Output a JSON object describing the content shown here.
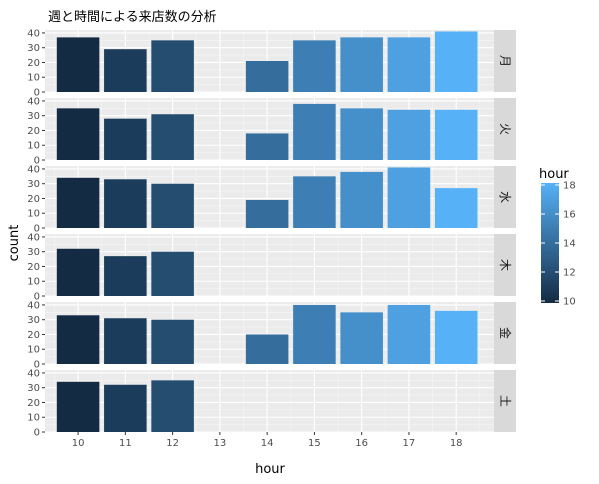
{
  "chart_data": {
    "type": "bar",
    "title": "週と時間による来店数の分析",
    "xlabel": "hour",
    "ylabel": "count",
    "x_ticks": [
      10,
      11,
      12,
      13,
      14,
      15,
      16,
      17,
      18
    ],
    "xlim": [
      9.3,
      18.8
    ],
    "y_ticks": [
      0,
      10,
      20,
      30,
      40
    ],
    "ylim": [
      0,
      42
    ],
    "grid": true,
    "legend": {
      "title": "hour",
      "position": "right",
      "ticks": [
        10,
        12,
        14,
        16,
        18
      ],
      "range": [
        10,
        18
      ],
      "colors": [
        "#132B43",
        "#56B1F7"
      ]
    },
    "panels": [
      {
        "label": "月",
        "bars": [
          {
            "hour": 10,
            "count": 37
          },
          {
            "hour": 11,
            "count": 29
          },
          {
            "hour": 12,
            "count": 35
          },
          {
            "hour": 14,
            "count": 21
          },
          {
            "hour": 15,
            "count": 35
          },
          {
            "hour": 16,
            "count": 37
          },
          {
            "hour": 17,
            "count": 37
          },
          {
            "hour": 18,
            "count": 41
          }
        ]
      },
      {
        "label": "火",
        "bars": [
          {
            "hour": 10,
            "count": 35
          },
          {
            "hour": 11,
            "count": 28
          },
          {
            "hour": 12,
            "count": 31
          },
          {
            "hour": 14,
            "count": 18
          },
          {
            "hour": 15,
            "count": 38
          },
          {
            "hour": 16,
            "count": 35
          },
          {
            "hour": 17,
            "count": 34
          },
          {
            "hour": 18,
            "count": 34
          }
        ]
      },
      {
        "label": "水",
        "bars": [
          {
            "hour": 10,
            "count": 34
          },
          {
            "hour": 11,
            "count": 33
          },
          {
            "hour": 12,
            "count": 30
          },
          {
            "hour": 14,
            "count": 19
          },
          {
            "hour": 15,
            "count": 35
          },
          {
            "hour": 16,
            "count": 38
          },
          {
            "hour": 17,
            "count": 41
          },
          {
            "hour": 18,
            "count": 27
          }
        ]
      },
      {
        "label": "木",
        "bars": [
          {
            "hour": 10,
            "count": 32
          },
          {
            "hour": 11,
            "count": 27
          },
          {
            "hour": 12,
            "count": 30
          }
        ]
      },
      {
        "label": "金",
        "bars": [
          {
            "hour": 10,
            "count": 33
          },
          {
            "hour": 11,
            "count": 31
          },
          {
            "hour": 12,
            "count": 30
          },
          {
            "hour": 14,
            "count": 20
          },
          {
            "hour": 15,
            "count": 40
          },
          {
            "hour": 16,
            "count": 35
          },
          {
            "hour": 17,
            "count": 40
          },
          {
            "hour": 18,
            "count": 36
          }
        ]
      },
      {
        "label": "土",
        "bars": [
          {
            "hour": 10,
            "count": 34
          },
          {
            "hour": 11,
            "count": 32
          },
          {
            "hour": 12,
            "count": 35
          }
        ]
      }
    ]
  }
}
